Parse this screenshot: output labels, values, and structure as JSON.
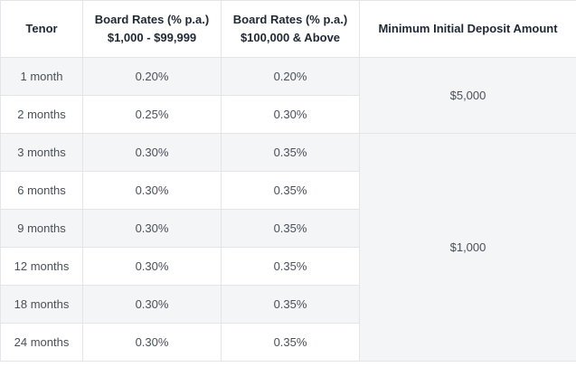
{
  "headers": {
    "tenor": "Tenor",
    "rate_small_line1": "Board Rates (% p.a.)",
    "rate_small_line2": "$1,000 - $99,999",
    "rate_large_line1": "Board Rates (% p.a.)",
    "rate_large_line2": "$100,000 & Above",
    "min_deposit": "Minimum Initial Deposit Amount"
  },
  "rows": [
    {
      "tenor": "1 month",
      "rate_small": "0.20%",
      "rate_large": "0.20%"
    },
    {
      "tenor": "2 months",
      "rate_small": "0.25%",
      "rate_large": "0.30%"
    },
    {
      "tenor": "3 months",
      "rate_small": "0.30%",
      "rate_large": "0.35%"
    },
    {
      "tenor": "6 months",
      "rate_small": "0.30%",
      "rate_large": "0.35%"
    },
    {
      "tenor": "9 months",
      "rate_small": "0.30%",
      "rate_large": "0.35%"
    },
    {
      "tenor": "12 months",
      "rate_small": "0.30%",
      "rate_large": "0.35%"
    },
    {
      "tenor": "18 months",
      "rate_small": "0.30%",
      "rate_large": "0.35%"
    },
    {
      "tenor": "24 months",
      "rate_small": "0.30%",
      "rate_large": "0.35%"
    }
  ],
  "deposits": [
    {
      "amount": "$5,000",
      "rows": 2
    },
    {
      "amount": "$1,000",
      "rows": 6
    }
  ]
}
